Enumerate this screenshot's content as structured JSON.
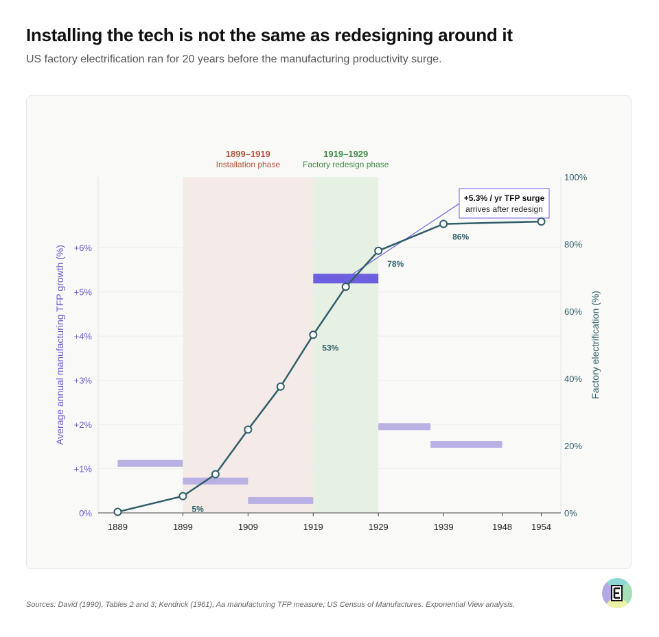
{
  "header": {
    "title": "Installing the tech is not the same as redesigning around it",
    "subtitle": "US factory electrification ran for 20 years before the manufacturing productivity surge."
  },
  "footer": {
    "source": "Sources: David (1990), Tables 2 and 3; Kendrick (1961), Aa manufacturing TFP measure; US Census of Manufactures. Exponential View analysis."
  },
  "colors": {
    "tfp": "#b9b0e4",
    "tfp_highlight": "#6e5fe0",
    "electrification": "#2f5d68",
    "installation_bg": "#f4ebe8",
    "redesign_bg": "#e6f0e3",
    "installation_text": "#b0553c",
    "redesign_text": "#3f8a47",
    "left_axis": "#6a5acd",
    "right_axis": "#2f5d68"
  },
  "chart_data": {
    "type": "bar+line",
    "x_ticks": [
      1889,
      1899,
      1909,
      1919,
      1929,
      1939,
      1948,
      1954
    ],
    "x_range": [
      1886,
      1957
    ],
    "phases": [
      {
        "range": "1899–1919",
        "label": "Installation phase",
        "start": 1899,
        "end": 1919
      },
      {
        "range": "1919–1929",
        "label": "Factory redesign phase",
        "start": 1919,
        "end": 1929
      }
    ],
    "left_axis": {
      "label": "Average annual manufacturing TFP growth (%)",
      "range": [
        0,
        7.6
      ],
      "ticks": [
        {
          "value": 0,
          "label": "0%"
        },
        {
          "value": 1,
          "label": "+1%"
        },
        {
          "value": 2,
          "label": "+2%"
        },
        {
          "value": 3,
          "label": "+3%"
        },
        {
          "value": 4,
          "label": "+4%"
        },
        {
          "value": 5,
          "label": "+5%"
        },
        {
          "value": 6,
          "label": "+6%"
        }
      ]
    },
    "right_axis": {
      "label": "Factory electrification (%)",
      "range": [
        0,
        100
      ],
      "ticks": [
        {
          "value": 0,
          "label": "0%"
        },
        {
          "value": 20,
          "label": "20%"
        },
        {
          "value": 40,
          "label": "40%"
        },
        {
          "value": 60,
          "label": "60%"
        },
        {
          "value": 80,
          "label": "80%"
        },
        {
          "value": 100,
          "label": "100%"
        }
      ]
    },
    "tfp_bars": [
      {
        "start": 1889,
        "end": 1899,
        "value": 1.12
      },
      {
        "start": 1899,
        "end": 1909,
        "value": 0.72
      },
      {
        "start": 1909,
        "end": 1919,
        "value": 0.28
      },
      {
        "start": 1919,
        "end": 1929,
        "value": 5.3,
        "highlight": true
      },
      {
        "start": 1929,
        "end": 1937,
        "value": 1.95
      },
      {
        "start": 1937,
        "end": 1948,
        "value": 1.55
      }
    ],
    "electrification": [
      {
        "x": 1889,
        "y": 0.3
      },
      {
        "x": 1899,
        "y": 5,
        "label": "5%"
      },
      {
        "x": 1904,
        "y": 11.5
      },
      {
        "x": 1909,
        "y": 24.8
      },
      {
        "x": 1914,
        "y": 37.6
      },
      {
        "x": 1919,
        "y": 53,
        "label": "53%"
      },
      {
        "x": 1924,
        "y": 67.3
      },
      {
        "x": 1929,
        "y": 78,
        "label": "78%"
      },
      {
        "x": 1939,
        "y": 86,
        "label": "86%"
      },
      {
        "x": 1954,
        "y": 86.7
      }
    ],
    "annotation": {
      "bold": "+5.3% / yr TFP surge",
      "text": "arrives after redesign",
      "target_x": 1924,
      "target_value": 5.3
    }
  }
}
